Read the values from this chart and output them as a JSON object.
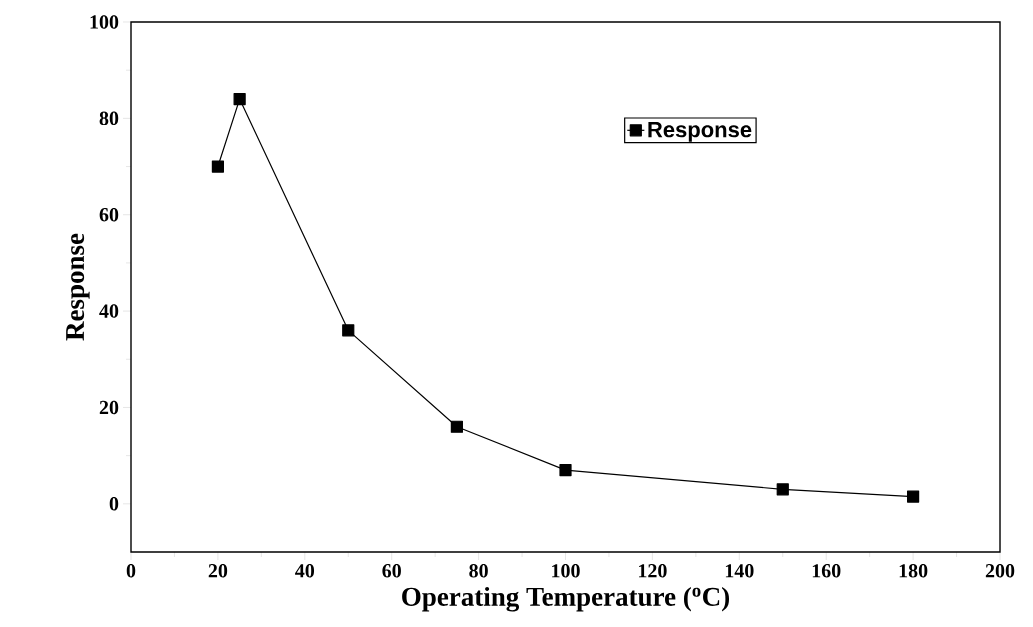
{
  "chart_data": {
    "type": "line",
    "xlabel": "Operating Temperature ($^{o}$C)",
    "ylabel": "Response",
    "x": [
      20,
      25,
      50,
      75,
      100,
      150,
      180
    ],
    "series": [
      {
        "name": "Response",
        "color": "#000000",
        "values": [
          70,
          84,
          36,
          16,
          7,
          3,
          1.5
        ]
      }
    ],
    "xlim": [
      0,
      200
    ],
    "ylim": [
      -10,
      100
    ],
    "xticks": [
      0,
      20,
      40,
      60,
      80,
      100,
      120,
      140,
      160,
      180,
      200
    ],
    "yticks": [
      0,
      20,
      40,
      60,
      80,
      100
    ],
    "legend": "top right",
    "marker": "square",
    "line_style": "solid"
  }
}
